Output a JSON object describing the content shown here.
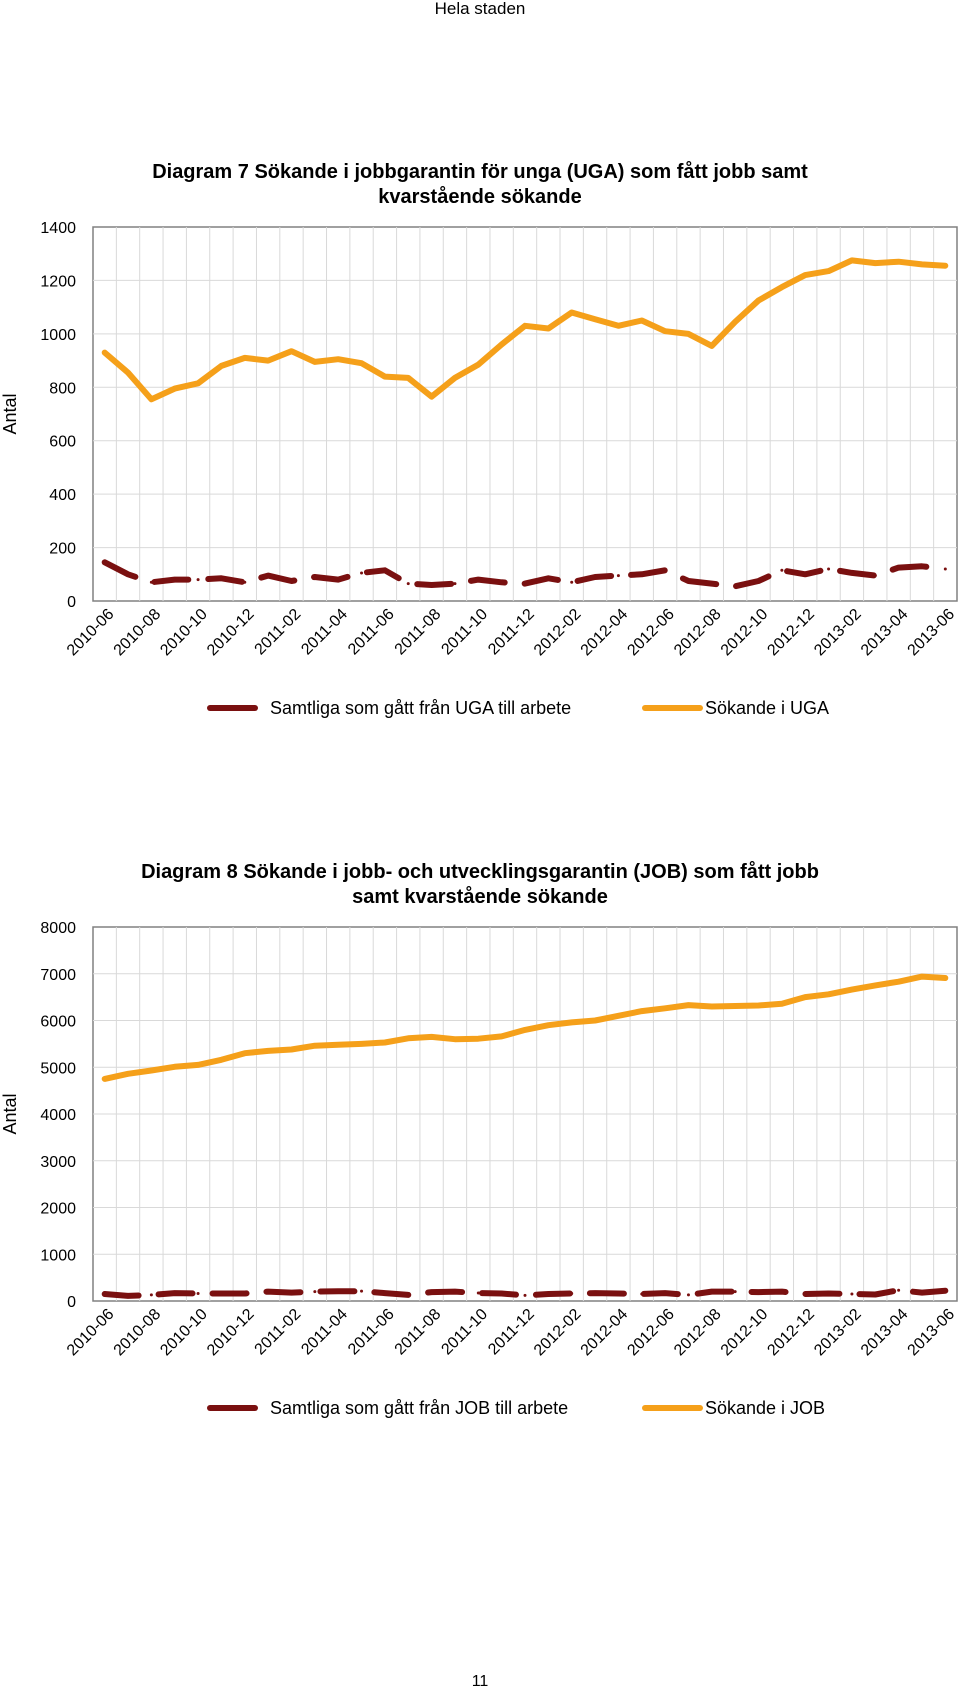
{
  "page": {
    "header": "Hela staden",
    "page_number": "11"
  },
  "colors": {
    "series_dark": "#7a1010",
    "series_orange": "#f5a01a",
    "grid": "#d9d9d9",
    "axis": "#808080"
  },
  "chart_data": [
    {
      "type": "line",
      "title_lines": [
        "Diagram 7 Sökande i jobbgarantin för unga (UGA) som fått jobb samt",
        "kvarstående sökande"
      ],
      "ylabel": "Antal",
      "ylim": [
        0,
        1400
      ],
      "yticks": [
        0,
        200,
        400,
        600,
        800,
        1000,
        1200,
        1400
      ],
      "tick_labels": [
        "2010-06",
        "2010-08",
        "2010-10",
        "2010-12",
        "2011-02",
        "2011-04",
        "2011-06",
        "2011-08",
        "2011-10",
        "2011-12",
        "2012-02",
        "2012-04",
        "2012-06",
        "2012-08",
        "2012-10",
        "2012-12",
        "2013-02",
        "2013-04",
        "2013-06"
      ],
      "x": [
        "2010-06",
        "2010-07",
        "2010-08",
        "2010-09",
        "2010-10",
        "2010-11",
        "2010-12",
        "2011-01",
        "2011-02",
        "2011-03",
        "2011-04",
        "2011-05",
        "2011-06",
        "2011-07",
        "2011-08",
        "2011-09",
        "2011-10",
        "2011-11",
        "2011-12",
        "2012-01",
        "2012-02",
        "2012-03",
        "2012-04",
        "2012-05",
        "2012-06",
        "2012-07",
        "2012-08",
        "2012-09",
        "2012-10",
        "2012-11",
        "2012-12",
        "2013-01",
        "2013-02",
        "2013-03",
        "2013-04",
        "2013-05",
        "2013-06"
      ],
      "grid": true,
      "legend_position": "bottom",
      "series": [
        {
          "name": "Samtliga som gått från UGA till arbete",
          "color": "#7a1010",
          "style": "dashed",
          "values": [
            145,
            100,
            70,
            80,
            80,
            85,
            70,
            95,
            75,
            90,
            80,
            105,
            115,
            65,
            60,
            65,
            80,
            70,
            65,
            85,
            70,
            90,
            95,
            100,
            115,
            75,
            65,
            55,
            75,
            115,
            100,
            120,
            105,
            95,
            125,
            130,
            120
          ]
        },
        {
          "name": "Sökande i UGA",
          "color": "#f5a01a",
          "style": "solid",
          "values": [
            930,
            855,
            755,
            795,
            815,
            880,
            910,
            900,
            935,
            895,
            905,
            890,
            840,
            835,
            765,
            835,
            885,
            960,
            1030,
            1020,
            1080,
            1055,
            1030,
            1050,
            1010,
            1000,
            955,
            1045,
            1125,
            1175,
            1220,
            1235,
            1275,
            1265,
            1270,
            1260,
            1255
          ]
        }
      ]
    },
    {
      "type": "line",
      "title_lines": [
        "Diagram 8 Sökande i jobb- och utvecklingsgarantin (JOB) som fått jobb",
        "samt kvarstående sökande"
      ],
      "ylabel": "Antal",
      "ylim": [
        0,
        8000
      ],
      "yticks": [
        0,
        1000,
        2000,
        3000,
        4000,
        5000,
        6000,
        7000,
        8000
      ],
      "tick_labels": [
        "2010-06",
        "2010-08",
        "2010-10",
        "2010-12",
        "2011-02",
        "2011-04",
        "2011-06",
        "2011-08",
        "2011-10",
        "2011-12",
        "2012-02",
        "2012-04",
        "2012-06",
        "2012-08",
        "2012-10",
        "2012-12",
        "2013-02",
        "2013-04",
        "2013-06"
      ],
      "x": [
        "2010-06",
        "2010-07",
        "2010-08",
        "2010-09",
        "2010-10",
        "2010-11",
        "2010-12",
        "2011-01",
        "2011-02",
        "2011-03",
        "2011-04",
        "2011-05",
        "2011-06",
        "2011-07",
        "2011-08",
        "2011-09",
        "2011-10",
        "2011-11",
        "2011-12",
        "2012-01",
        "2012-02",
        "2012-03",
        "2012-04",
        "2012-05",
        "2012-06",
        "2012-07",
        "2012-08",
        "2012-09",
        "2012-10",
        "2012-11",
        "2012-12",
        "2013-01",
        "2013-02",
        "2013-03",
        "2013-04",
        "2013-05",
        "2013-06"
      ],
      "grid": true,
      "legend_position": "bottom",
      "series": [
        {
          "name": "Samtliga som gått från JOB till arbete",
          "color": "#7a1010",
          "style": "dashed",
          "values": [
            150,
            110,
            130,
            170,
            160,
            160,
            160,
            200,
            180,
            200,
            210,
            210,
            170,
            130,
            190,
            200,
            170,
            160,
            120,
            150,
            160,
            170,
            160,
            150,
            170,
            130,
            200,
            200,
            190,
            200,
            150,
            160,
            150,
            140,
            230,
            180,
            220
          ]
        },
        {
          "name": "Sökande i JOB",
          "color": "#f5a01a",
          "style": "solid",
          "values": [
            4750,
            4860,
            4930,
            5010,
            5050,
            5160,
            5300,
            5350,
            5380,
            5460,
            5480,
            5500,
            5530,
            5620,
            5650,
            5600,
            5610,
            5660,
            5800,
            5900,
            5960,
            6000,
            6100,
            6200,
            6260,
            6330,
            6300,
            6310,
            6320,
            6360,
            6500,
            6560,
            6660,
            6750,
            6830,
            6940,
            6910
          ]
        }
      ]
    }
  ]
}
